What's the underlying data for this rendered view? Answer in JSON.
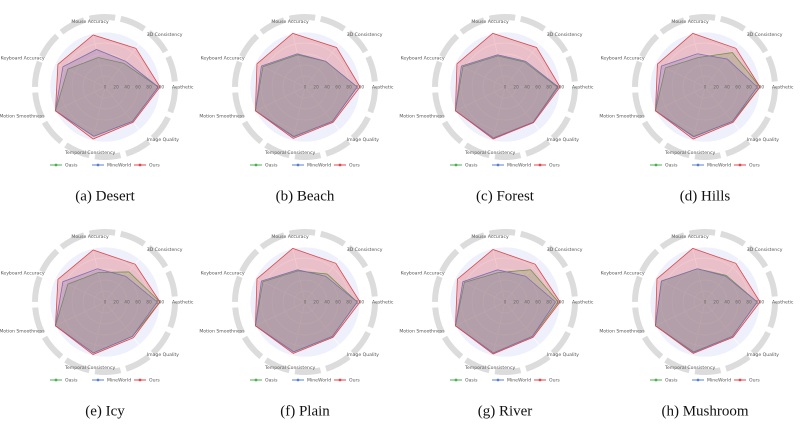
{
  "chart_data": [
    {
      "type": "radar",
      "caption": "(a) Desert",
      "categories": [
        "Aesthetic",
        "3D Consistency",
        "Mouse Accuracy",
        "Keyboard Accuracy",
        "Motion Smoothness",
        "Temporal Consistency",
        "Image Quality"
      ],
      "rlim": [
        0,
        100
      ],
      "rticks": [
        0,
        20,
        40,
        60,
        80,
        100
      ],
      "series": [
        {
          "name": "Oasis",
          "color": "#4caf50",
          "values": [
            97,
            55,
            55,
            75,
            100,
            92,
            80
          ]
        },
        {
          "name": "MineWorld",
          "color": "#5b7fd6",
          "values": [
            97,
            60,
            70,
            85,
            100,
            92,
            80
          ]
        },
        {
          "name": "Ours",
          "color": "#e0454a",
          "values": [
            100,
            90,
            97,
            95,
            100,
            97,
            82
          ]
        }
      ]
    },
    {
      "type": "radar",
      "caption": "(b) Beach",
      "categories": [
        "Aesthetic",
        "3D Consistency",
        "Mouse Accuracy",
        "Keyboard Accuracy",
        "Motion Smoothness",
        "Temporal Consistency",
        "Image Quality"
      ],
      "rlim": [
        0,
        100
      ],
      "rticks": [
        0,
        20,
        40,
        60,
        80,
        100
      ],
      "series": [
        {
          "name": "Oasis",
          "color": "#4caf50",
          "values": [
            95,
            60,
            60,
            85,
            100,
            92,
            80
          ]
        },
        {
          "name": "MineWorld",
          "color": "#5b7fd6",
          "values": [
            95,
            60,
            62,
            88,
            100,
            93,
            80
          ]
        },
        {
          "name": "Ours",
          "color": "#e0454a",
          "values": [
            100,
            92,
            100,
            97,
            100,
            96,
            82
          ]
        }
      ]
    },
    {
      "type": "radar",
      "caption": "(c) Forest",
      "categories": [
        "Aesthetic",
        "3D Consistency",
        "Mouse Accuracy",
        "Keyboard Accuracy",
        "Motion Smoothness",
        "Temporal Consistency",
        "Image Quality"
      ],
      "rlim": [
        0,
        100
      ],
      "rticks": [
        0,
        20,
        40,
        60,
        80,
        100
      ],
      "series": [
        {
          "name": "Oasis",
          "color": "#4caf50",
          "values": [
            95,
            58,
            58,
            85,
            100,
            95,
            82
          ]
        },
        {
          "name": "MineWorld",
          "color": "#5b7fd6",
          "values": [
            97,
            60,
            60,
            88,
            100,
            95,
            82
          ]
        },
        {
          "name": "Ours",
          "color": "#e0454a",
          "values": [
            100,
            92,
            100,
            97,
            100,
            97,
            83
          ]
        }
      ]
    },
    {
      "type": "radar",
      "caption": "(d) Hills",
      "categories": [
        "Aesthetic",
        "3D Consistency",
        "Mouse Accuracy",
        "Keyboard Accuracy",
        "Motion Smoothness",
        "Temporal Consistency",
        "Image Quality"
      ],
      "rlim": [
        0,
        100
      ],
      "rticks": [
        0,
        20,
        40,
        60,
        80,
        100
      ],
      "series": [
        {
          "name": "Oasis",
          "color": "#4caf50",
          "values": [
            100,
            80,
            55,
            80,
            100,
            92,
            80
          ]
        },
        {
          "name": "MineWorld",
          "color": "#5b7fd6",
          "values": [
            95,
            65,
            62,
            88,
            100,
            93,
            80
          ]
        },
        {
          "name": "Ours",
          "color": "#e0454a",
          "values": [
            100,
            90,
            100,
            96,
            100,
            97,
            82
          ]
        }
      ]
    },
    {
      "type": "radar",
      "caption": "(e) Icy",
      "categories": [
        "Aesthetic",
        "3D Consistency",
        "Mouse Accuracy",
        "Keyboard Accuracy",
        "Motion Smoothness",
        "Temporal Consistency",
        "Image Quality"
      ],
      "rlim": [
        0,
        100
      ],
      "rticks": [
        0,
        20,
        40,
        60,
        80,
        100
      ],
      "series": [
        {
          "name": "Oasis",
          "color": "#4caf50",
          "values": [
            100,
            70,
            55,
            75,
            100,
            95,
            80
          ]
        },
        {
          "name": "MineWorld",
          "color": "#5b7fd6",
          "values": [
            95,
            60,
            62,
            85,
            100,
            95,
            80
          ]
        },
        {
          "name": "Ours",
          "color": "#e0454a",
          "values": [
            100,
            88,
            97,
            95,
            100,
            98,
            83
          ]
        }
      ]
    },
    {
      "type": "radar",
      "caption": "(f) Plain",
      "categories": [
        "Aesthetic",
        "3D Consistency",
        "Mouse Accuracy",
        "Keyboard Accuracy",
        "Motion Smoothness",
        "Temporal Consistency",
        "Image Quality"
      ],
      "rlim": [
        0,
        100
      ],
      "rticks": [
        0,
        20,
        40,
        60,
        80,
        100
      ],
      "series": [
        {
          "name": "Oasis",
          "color": "#4caf50",
          "values": [
            95,
            65,
            58,
            85,
            100,
            93,
            80
          ]
        },
        {
          "name": "MineWorld",
          "color": "#5b7fd6",
          "values": [
            95,
            60,
            60,
            88,
            100,
            93,
            80
          ]
        },
        {
          "name": "Ours",
          "color": "#e0454a",
          "values": [
            100,
            90,
            100,
            97,
            100,
            96,
            82
          ]
        }
      ]
    },
    {
      "type": "radar",
      "caption": "(g) River",
      "categories": [
        "Aesthetic",
        "3D Consistency",
        "Mouse Accuracy",
        "Keyboard Accuracy",
        "Motion Smoothness",
        "Temporal Consistency",
        "Image Quality"
      ],
      "rlim": [
        0,
        100
      ],
      "rticks": [
        0,
        20,
        40,
        60,
        80,
        100
      ],
      "series": [
        {
          "name": "Oasis",
          "color": "#4caf50",
          "values": [
            97,
            75,
            55,
            82,
            100,
            95,
            80
          ]
        },
        {
          "name": "MineWorld",
          "color": "#5b7fd6",
          "values": [
            92,
            60,
            60,
            85,
            100,
            95,
            80
          ]
        },
        {
          "name": "Ours",
          "color": "#e0454a",
          "values": [
            100,
            88,
            98,
            96,
            100,
            97,
            82
          ]
        }
      ]
    },
    {
      "type": "radar",
      "caption": "(h) Mushroom",
      "categories": [
        "Aesthetic",
        "3D Consistency",
        "Mouse Accuracy",
        "Keyboard Accuracy",
        "Motion Smoothness",
        "Temporal Consistency",
        "Image Quality"
      ],
      "rlim": [
        0,
        100
      ],
      "rticks": [
        0,
        20,
        40,
        60,
        80,
        100
      ],
      "series": [
        {
          "name": "Oasis",
          "color": "#4caf50",
          "values": [
            95,
            62,
            62,
            88,
            100,
            93,
            80
          ]
        },
        {
          "name": "MineWorld",
          "color": "#5b7fd6",
          "values": [
            95,
            60,
            62,
            88,
            100,
            94,
            80
          ]
        },
        {
          "name": "Ours",
          "color": "#e0454a",
          "values": [
            100,
            90,
            100,
            97,
            100,
            96,
            82
          ]
        }
      ]
    }
  ]
}
